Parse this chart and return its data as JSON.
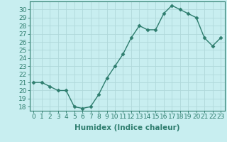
{
  "x": [
    0,
    1,
    2,
    3,
    4,
    5,
    6,
    7,
    8,
    9,
    10,
    11,
    12,
    13,
    14,
    15,
    16,
    17,
    18,
    19,
    20,
    21,
    22,
    23
  ],
  "y": [
    21,
    21,
    20.5,
    20,
    20,
    18,
    17.8,
    18,
    19.5,
    21.5,
    23,
    24.5,
    26.5,
    28,
    27.5,
    27.5,
    29.5,
    30.5,
    30,
    29.5,
    29,
    26.5,
    25.5,
    26.5
  ],
  "line_color": "#2e7d6e",
  "marker": "D",
  "marker_size": 2.5,
  "bg_color": "#c8eef0",
  "grid_major_color": "#b0d8da",
  "grid_minor_color": "#d8f0f2",
  "xlabel": "Humidex (Indice chaleur)",
  "ylim": [
    17.5,
    31.0
  ],
  "xlim": [
    -0.5,
    23.5
  ],
  "yticks": [
    18,
    19,
    20,
    21,
    22,
    23,
    24,
    25,
    26,
    27,
    28,
    29,
    30
  ],
  "xticks": [
    0,
    1,
    2,
    3,
    4,
    5,
    6,
    7,
    8,
    9,
    10,
    11,
    12,
    13,
    14,
    15,
    16,
    17,
    18,
    19,
    20,
    21,
    22,
    23
  ],
  "xlabel_fontsize": 7.5,
  "tick_fontsize": 6.5,
  "line_width": 1.0
}
